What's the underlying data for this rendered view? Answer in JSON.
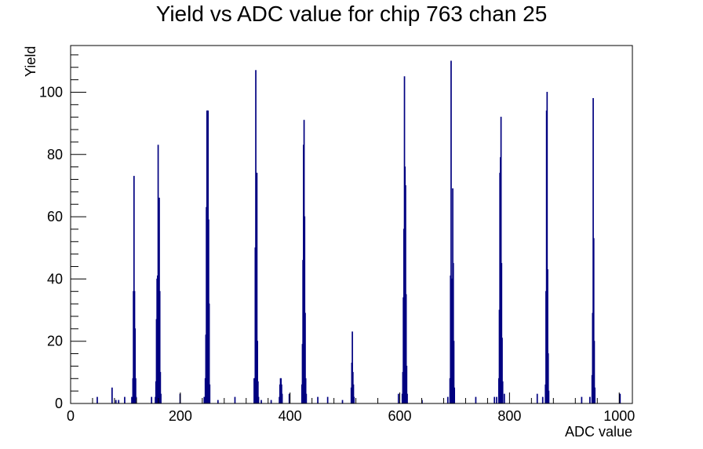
{
  "chart_data": {
    "type": "bar",
    "title": "Yield vs ADC value for chip 763 chan 25",
    "xlabel": "ADC value",
    "ylabel": "Yield",
    "xlim": [
      0,
      1024
    ],
    "ylim": [
      0,
      115
    ],
    "x_ticks": [
      0,
      200,
      400,
      600,
      800,
      1000
    ],
    "y_ticks": [
      0,
      20,
      40,
      60,
      80,
      100
    ],
    "grid": false,
    "legend": "none",
    "line_color": "#000080",
    "points": [
      {
        "x": 48,
        "y": 2
      },
      {
        "x": 75,
        "y": 5
      },
      {
        "x": 82,
        "y": 1
      },
      {
        "x": 87,
        "y": 1
      },
      {
        "x": 98,
        "y": 2
      },
      {
        "x": 111,
        "y": 2
      },
      {
        "x": 113,
        "y": 8
      },
      {
        "x": 114,
        "y": 36
      },
      {
        "x": 115,
        "y": 73
      },
      {
        "x": 116,
        "y": 36
      },
      {
        "x": 117,
        "y": 24
      },
      {
        "x": 118,
        "y": 8
      },
      {
        "x": 119,
        "y": 2
      },
      {
        "x": 147,
        "y": 2
      },
      {
        "x": 154,
        "y": 2
      },
      {
        "x": 155,
        "y": 7
      },
      {
        "x": 156,
        "y": 27
      },
      {
        "x": 157,
        "y": 40
      },
      {
        "x": 158,
        "y": 41
      },
      {
        "x": 159,
        "y": 83
      },
      {
        "x": 160,
        "y": 55
      },
      {
        "x": 161,
        "y": 66
      },
      {
        "x": 162,
        "y": 36
      },
      {
        "x": 163,
        "y": 10
      },
      {
        "x": 164,
        "y": 3
      },
      {
        "x": 199,
        "y": 3
      },
      {
        "x": 243,
        "y": 2
      },
      {
        "x": 245,
        "y": 8
      },
      {
        "x": 246,
        "y": 22
      },
      {
        "x": 247,
        "y": 63
      },
      {
        "x": 248,
        "y": 94
      },
      {
        "x": 249,
        "y": 94
      },
      {
        "x": 250,
        "y": 94
      },
      {
        "x": 251,
        "y": 59
      },
      {
        "x": 252,
        "y": 32
      },
      {
        "x": 253,
        "y": 6
      },
      {
        "x": 268,
        "y": 1
      },
      {
        "x": 299,
        "y": 2
      },
      {
        "x": 334,
        "y": 8
      },
      {
        "x": 335,
        "y": 8
      },
      {
        "x": 336,
        "y": 50
      },
      {
        "x": 337,
        "y": 107
      },
      {
        "x": 338,
        "y": 74
      },
      {
        "x": 339,
        "y": 74
      },
      {
        "x": 340,
        "y": 20
      },
      {
        "x": 341,
        "y": 7
      },
      {
        "x": 342,
        "y": 2
      },
      {
        "x": 347,
        "y": 1
      },
      {
        "x": 365,
        "y": 1
      },
      {
        "x": 380,
        "y": 2
      },
      {
        "x": 381,
        "y": 6
      },
      {
        "x": 382,
        "y": 8
      },
      {
        "x": 383,
        "y": 8
      },
      {
        "x": 384,
        "y": 6
      },
      {
        "x": 385,
        "y": 3
      },
      {
        "x": 398,
        "y": 3
      },
      {
        "x": 421,
        "y": 6
      },
      {
        "x": 422,
        "y": 19
      },
      {
        "x": 423,
        "y": 46
      },
      {
        "x": 424,
        "y": 83
      },
      {
        "x": 425,
        "y": 91
      },
      {
        "x": 426,
        "y": 60
      },
      {
        "x": 427,
        "y": 29
      },
      {
        "x": 428,
        "y": 8
      },
      {
        "x": 429,
        "y": 3
      },
      {
        "x": 450,
        "y": 2
      },
      {
        "x": 468,
        "y": 2
      },
      {
        "x": 495,
        "y": 1
      },
      {
        "x": 511,
        "y": 5
      },
      {
        "x": 512,
        "y": 13
      },
      {
        "x": 513,
        "y": 23
      },
      {
        "x": 514,
        "y": 10
      },
      {
        "x": 515,
        "y": 6
      },
      {
        "x": 516,
        "y": 2
      },
      {
        "x": 597,
        "y": 3
      },
      {
        "x": 604,
        "y": 3
      },
      {
        "x": 605,
        "y": 10
      },
      {
        "x": 606,
        "y": 34
      },
      {
        "x": 607,
        "y": 56
      },
      {
        "x": 608,
        "y": 105
      },
      {
        "x": 609,
        "y": 76
      },
      {
        "x": 610,
        "y": 70
      },
      {
        "x": 611,
        "y": 35
      },
      {
        "x": 612,
        "y": 12
      },
      {
        "x": 613,
        "y": 3
      },
      {
        "x": 640,
        "y": 1
      },
      {
        "x": 687,
        "y": 2
      },
      {
        "x": 691,
        "y": 8
      },
      {
        "x": 692,
        "y": 41
      },
      {
        "x": 693,
        "y": 110
      },
      {
        "x": 694,
        "y": 40
      },
      {
        "x": 695,
        "y": 15
      },
      {
        "x": 696,
        "y": 69
      },
      {
        "x": 697,
        "y": 45
      },
      {
        "x": 698,
        "y": 20
      },
      {
        "x": 699,
        "y": 5
      },
      {
        "x": 738,
        "y": 2
      },
      {
        "x": 772,
        "y": 2
      },
      {
        "x": 776,
        "y": 2
      },
      {
        "x": 780,
        "y": 8
      },
      {
        "x": 781,
        "y": 30
      },
      {
        "x": 782,
        "y": 74
      },
      {
        "x": 783,
        "y": 79
      },
      {
        "x": 784,
        "y": 92
      },
      {
        "x": 785,
        "y": 45
      },
      {
        "x": 786,
        "y": 21
      },
      {
        "x": 787,
        "y": 7
      },
      {
        "x": 790,
        "y": 3
      },
      {
        "x": 850,
        "y": 3
      },
      {
        "x": 860,
        "y": 2
      },
      {
        "x": 865,
        "y": 6
      },
      {
        "x": 866,
        "y": 36
      },
      {
        "x": 867,
        "y": 94
      },
      {
        "x": 868,
        "y": 100
      },
      {
        "x": 869,
        "y": 43
      },
      {
        "x": 870,
        "y": 16
      },
      {
        "x": 871,
        "y": 4
      },
      {
        "x": 931,
        "y": 2
      },
      {
        "x": 946,
        "y": 2
      },
      {
        "x": 950,
        "y": 9
      },
      {
        "x": 951,
        "y": 29
      },
      {
        "x": 952,
        "y": 98
      },
      {
        "x": 953,
        "y": 53
      },
      {
        "x": 954,
        "y": 20
      },
      {
        "x": 955,
        "y": 5
      },
      {
        "x": 1001,
        "y": 3
      }
    ]
  }
}
